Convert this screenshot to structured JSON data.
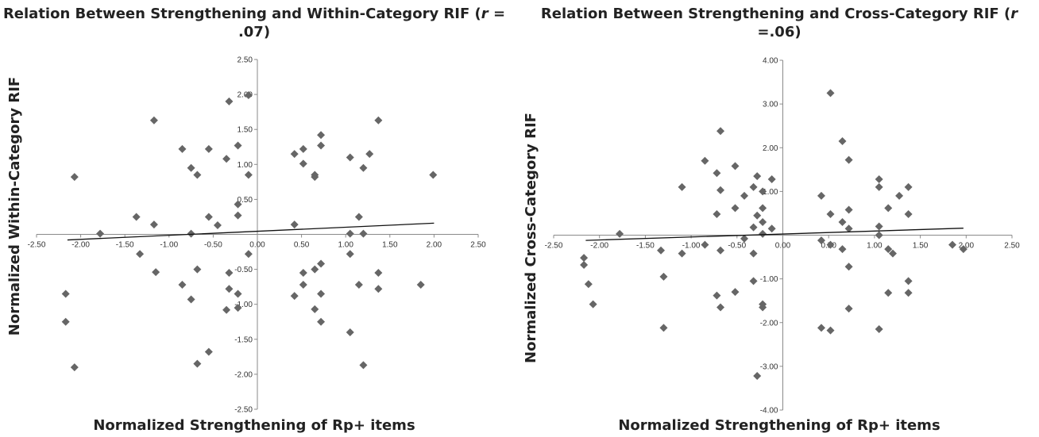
{
  "chart_data": [
    {
      "type": "scatter",
      "title_main": "Relation Between Strengthening and Within-Category RIF (",
      "title_r": "r",
      "title_value": " = .07)",
      "xlabel": "Normalized Strengthening of Rp+ items",
      "ylabel": "Normalized Within-Category RIF",
      "xlim": [
        -2.5,
        2.5
      ],
      "ylim": [
        -2.5,
        2.5
      ],
      "xticks": [
        "-2.50",
        "-2.00",
        "-1.50",
        "-1.00",
        "-0.50",
        "0.00",
        "0.50",
        "1.00",
        "1.50",
        "2.00",
        "2.50"
      ],
      "yticks": [
        "2.50",
        "2.00",
        "1.50",
        "1.00",
        "0.50",
        "0.00",
        "-0.50",
        "-1.00",
        "-1.50",
        "-2.00",
        "-2.50"
      ],
      "grid": false,
      "marker": "diamond",
      "marker_color": "#666666",
      "trendline": {
        "x": [
          -2.15,
          2.0
        ],
        "y": [
          -0.08,
          0.16
        ]
      },
      "points": [
        {
          "x": -2.07,
          "y": 0.82
        },
        {
          "x": -2.17,
          "y": -0.85
        },
        {
          "x": -2.17,
          "y": -1.25
        },
        {
          "x": -2.07,
          "y": -1.9
        },
        {
          "x": -1.78,
          "y": 0.01
        },
        {
          "x": -1.37,
          "y": 0.25
        },
        {
          "x": -1.33,
          "y": -0.28
        },
        {
          "x": -1.17,
          "y": 1.63
        },
        {
          "x": -1.17,
          "y": 0.14
        },
        {
          "x": -1.15,
          "y": -0.54
        },
        {
          "x": -0.85,
          "y": 1.22
        },
        {
          "x": -0.85,
          "y": -0.72
        },
        {
          "x": -0.75,
          "y": 0.95
        },
        {
          "x": -0.75,
          "y": 0.01
        },
        {
          "x": -0.75,
          "y": -0.93
        },
        {
          "x": -0.68,
          "y": 0.85
        },
        {
          "x": -0.68,
          "y": -0.5
        },
        {
          "x": -0.68,
          "y": -1.85
        },
        {
          "x": -0.55,
          "y": 1.22
        },
        {
          "x": -0.55,
          "y": 0.25
        },
        {
          "x": -0.55,
          "y": -1.68
        },
        {
          "x": -0.45,
          "y": 0.13
        },
        {
          "x": -0.35,
          "y": 1.08
        },
        {
          "x": -0.32,
          "y": 1.9
        },
        {
          "x": -0.32,
          "y": -0.55
        },
        {
          "x": -0.32,
          "y": -0.78
        },
        {
          "x": -0.35,
          "y": -1.08
        },
        {
          "x": -0.22,
          "y": 1.27
        },
        {
          "x": -0.22,
          "y": 0.43
        },
        {
          "x": -0.22,
          "y": 0.27
        },
        {
          "x": -0.22,
          "y": -0.85
        },
        {
          "x": -0.22,
          "y": -1.05
        },
        {
          "x": -0.1,
          "y": 1.99
        },
        {
          "x": -0.1,
          "y": 0.85
        },
        {
          "x": -0.1,
          "y": -0.28
        },
        {
          "x": 0.42,
          "y": 1.15
        },
        {
          "x": 0.42,
          "y": 0.14
        },
        {
          "x": 0.42,
          "y": -0.88
        },
        {
          "x": 0.52,
          "y": 1.22
        },
        {
          "x": 0.52,
          "y": 1.01
        },
        {
          "x": 0.52,
          "y": -0.55
        },
        {
          "x": 0.52,
          "y": -0.72
        },
        {
          "x": 0.65,
          "y": 0.85
        },
        {
          "x": 0.65,
          "y": 0.82
        },
        {
          "x": 0.65,
          "y": -0.5
        },
        {
          "x": 0.65,
          "y": -1.07
        },
        {
          "x": 0.72,
          "y": 1.42
        },
        {
          "x": 0.72,
          "y": 1.27
        },
        {
          "x": 0.72,
          "y": -0.42
        },
        {
          "x": 0.72,
          "y": -0.85
        },
        {
          "x": 0.72,
          "y": -1.25
        },
        {
          "x": 1.05,
          "y": 1.1
        },
        {
          "x": 1.05,
          "y": 0.01
        },
        {
          "x": 1.05,
          "y": -0.28
        },
        {
          "x": 1.05,
          "y": -1.4
        },
        {
          "x": 1.15,
          "y": 0.25
        },
        {
          "x": 1.15,
          "y": -0.72
        },
        {
          "x": 1.2,
          "y": 0.95
        },
        {
          "x": 1.2,
          "y": 0.01
        },
        {
          "x": 1.2,
          "y": -1.87
        },
        {
          "x": 1.27,
          "y": 1.15
        },
        {
          "x": 1.37,
          "y": 1.63
        },
        {
          "x": 1.37,
          "y": -0.55
        },
        {
          "x": 1.37,
          "y": -0.78
        },
        {
          "x": 1.85,
          "y": -0.72
        },
        {
          "x": 1.99,
          "y": 0.85
        }
      ]
    },
    {
      "type": "scatter",
      "title_main": "Relation Between Strengthening and Cross-Category RIF (",
      "title_r": "r",
      "title_value": " =.06)",
      "xlabel": "Normalized Strengthening of Rp+ items",
      "ylabel": "Normalized Cross-Category RIF",
      "xlim": [
        -2.5,
        2.5
      ],
      "ylim": [
        -4.0,
        4.0
      ],
      "xticks": [
        "-2.50",
        "-2.00",
        "-1.50",
        "-1.00",
        "-0.50",
        "0.00",
        "0.50",
        "1.00",
        "1.50",
        "2.00",
        "2.50"
      ],
      "yticks": [
        "4.00",
        "3.00",
        "2.00",
        "1.00",
        "0.00",
        "-1.00",
        "-2.00",
        "-3.00",
        "-4.00"
      ],
      "grid": false,
      "marker": "diamond",
      "marker_color": "#666666",
      "trendline": {
        "x": [
          -2.15,
          1.97
        ],
        "y": [
          -0.12,
          0.16
        ]
      },
      "points": [
        {
          "x": -2.17,
          "y": -0.52
        },
        {
          "x": -2.17,
          "y": -0.68
        },
        {
          "x": -2.12,
          "y": -1.12
        },
        {
          "x": -2.07,
          "y": -1.58
        },
        {
          "x": -1.78,
          "y": 0.03
        },
        {
          "x": -1.33,
          "y": -0.35
        },
        {
          "x": -1.3,
          "y": -0.95
        },
        {
          "x": -1.3,
          "y": -2.12
        },
        {
          "x": -1.1,
          "y": 1.1
        },
        {
          "x": -1.1,
          "y": -0.42
        },
        {
          "x": -0.85,
          "y": 1.7
        },
        {
          "x": -0.85,
          "y": -0.22
        },
        {
          "x": -0.72,
          "y": 1.42
        },
        {
          "x": -0.72,
          "y": 0.48
        },
        {
          "x": -0.72,
          "y": -1.38
        },
        {
          "x": -0.68,
          "y": 2.38
        },
        {
          "x": -0.68,
          "y": 1.03
        },
        {
          "x": -0.68,
          "y": -0.35
        },
        {
          "x": -0.68,
          "y": -1.65
        },
        {
          "x": -0.52,
          "y": 1.58
        },
        {
          "x": -0.52,
          "y": 0.62
        },
        {
          "x": -0.52,
          "y": -1.3
        },
        {
          "x": -0.42,
          "y": 0.9
        },
        {
          "x": -0.42,
          "y": -0.08
        },
        {
          "x": -0.32,
          "y": 1.1
        },
        {
          "x": -0.32,
          "y": 0.18
        },
        {
          "x": -0.32,
          "y": -0.42
        },
        {
          "x": -0.32,
          "y": -1.05
        },
        {
          "x": -0.28,
          "y": 1.35
        },
        {
          "x": -0.28,
          "y": 0.45
        },
        {
          "x": -0.28,
          "y": -3.22
        },
        {
          "x": -0.22,
          "y": 0.62
        },
        {
          "x": -0.22,
          "y": 0.3
        },
        {
          "x": -0.22,
          "y": 0.03
        },
        {
          "x": -0.22,
          "y": -1.58
        },
        {
          "x": -0.22,
          "y": -1.65
        },
        {
          "x": -0.22,
          "y": 1.0
        },
        {
          "x": -0.12,
          "y": 1.28
        },
        {
          "x": -0.12,
          "y": 0.15
        },
        {
          "x": 0.42,
          "y": 0.9
        },
        {
          "x": 0.42,
          "y": -0.12
        },
        {
          "x": 0.42,
          "y": -2.12
        },
        {
          "x": 0.52,
          "y": 3.25
        },
        {
          "x": 0.52,
          "y": 0.48
        },
        {
          "x": 0.52,
          "y": -0.22
        },
        {
          "x": 0.52,
          "y": -2.18
        },
        {
          "x": 0.65,
          "y": 2.15
        },
        {
          "x": 0.65,
          "y": 0.3
        },
        {
          "x": 0.65,
          "y": -0.32
        },
        {
          "x": 0.72,
          "y": 1.72
        },
        {
          "x": 0.72,
          "y": 0.58
        },
        {
          "x": 0.72,
          "y": 0.15
        },
        {
          "x": 0.72,
          "y": -0.72
        },
        {
          "x": 0.72,
          "y": -1.68
        },
        {
          "x": 1.05,
          "y": 1.28
        },
        {
          "x": 1.05,
          "y": 1.1
        },
        {
          "x": 1.05,
          "y": 0.2
        },
        {
          "x": 1.05,
          "y": 0.0
        },
        {
          "x": 1.05,
          "y": -2.15
        },
        {
          "x": 1.15,
          "y": 0.62
        },
        {
          "x": 1.15,
          "y": -0.32
        },
        {
          "x": 1.15,
          "y": -1.32
        },
        {
          "x": 1.2,
          "y": -0.42
        },
        {
          "x": 1.27,
          "y": 0.9
        },
        {
          "x": 1.37,
          "y": 1.1
        },
        {
          "x": 1.37,
          "y": 0.48
        },
        {
          "x": 1.37,
          "y": -1.05
        },
        {
          "x": 1.37,
          "y": -1.32
        },
        {
          "x": 1.85,
          "y": -0.22
        },
        {
          "x": 1.97,
          "y": -0.32
        }
      ]
    }
  ]
}
